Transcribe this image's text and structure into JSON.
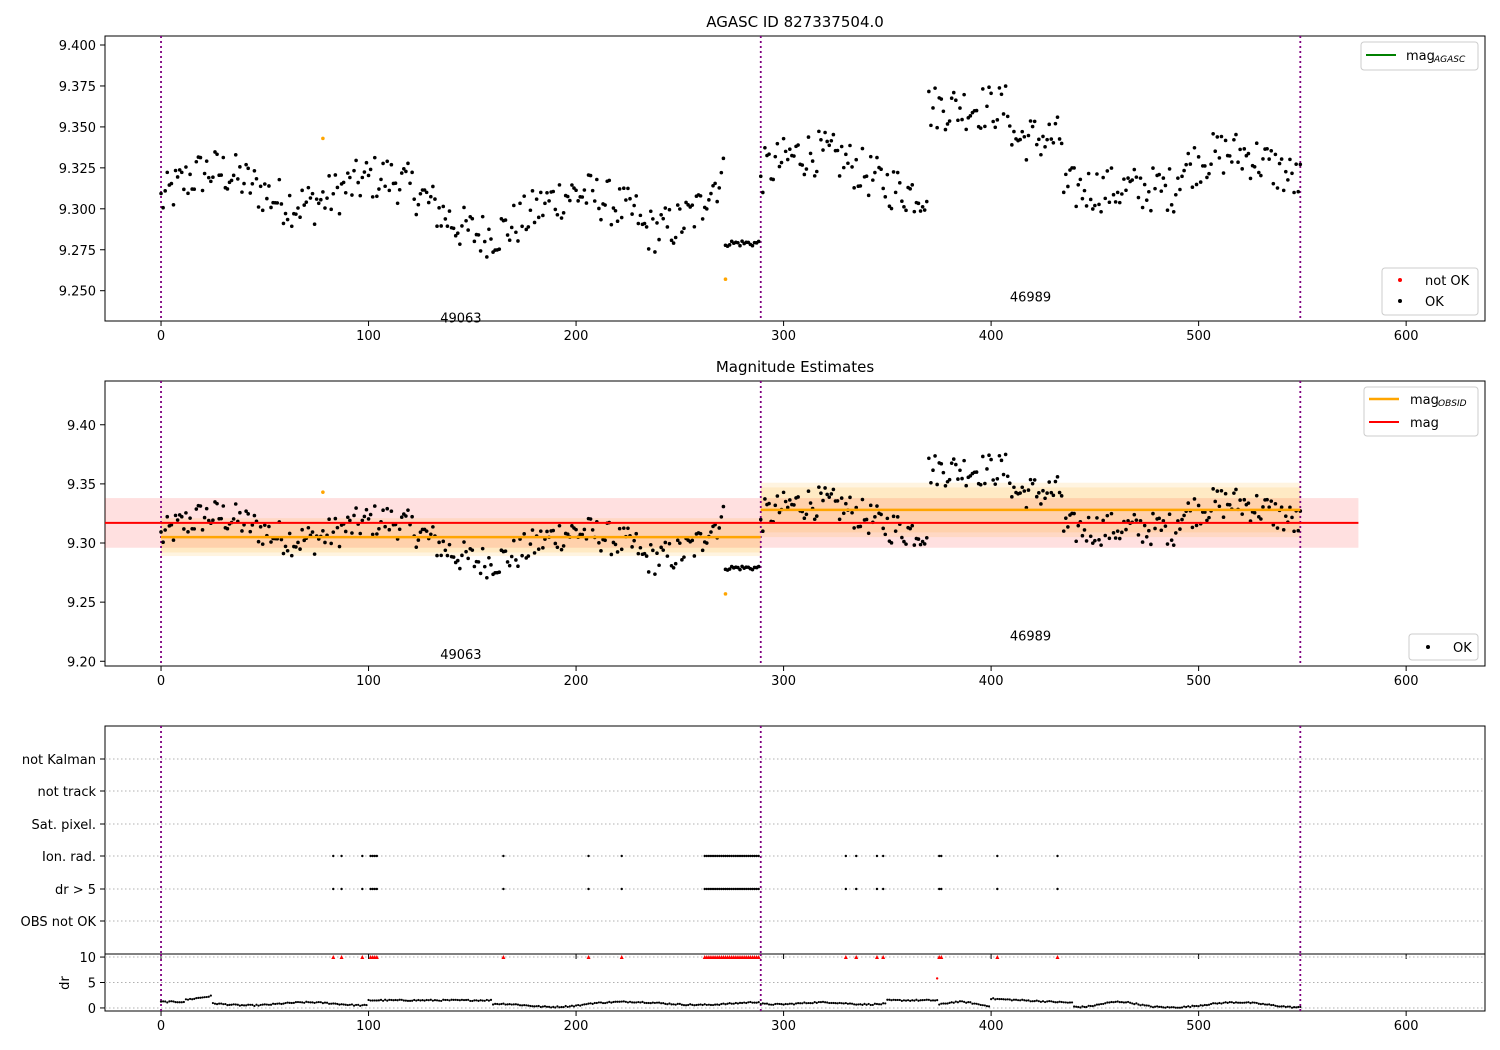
{
  "chart_data": [
    {
      "type": "scatter",
      "title": "AGASC ID 827337504.0",
      "xlim": [
        -27,
        638
      ],
      "ylim": [
        9.2315,
        9.4055
      ],
      "xticks": [
        0,
        100,
        200,
        300,
        400,
        500,
        600
      ],
      "yticks": [
        9.25,
        9.275,
        9.3,
        9.325,
        9.35,
        9.375,
        9.4
      ],
      "ytick_labels": [
        "9.250",
        "9.275",
        "9.300",
        "9.325",
        "9.350",
        "9.375",
        "9.400"
      ],
      "obsid_boundaries": [
        0,
        289,
        549
      ],
      "obsid_labels": [
        {
          "text": "49063",
          "x": 144.5,
          "y": 9.2335
        },
        {
          "text": "46989",
          "x": 419,
          "y": 9.2465
        }
      ],
      "legend_upper": {
        "position": "upper right",
        "entries": [
          {
            "label": "mag",
            "subscript": "AGASC",
            "color": "#008000"
          }
        ]
      },
      "legend_lower": {
        "position": "lower right",
        "entries": [
          {
            "label": "not OK",
            "color": "#ff0000"
          },
          {
            "label": "OK",
            "color": "#000000"
          }
        ]
      },
      "flagged_points": [
        {
          "x": 78,
          "y": 9.343,
          "color": "#ffa500"
        },
        {
          "x": 272,
          "y": 9.257,
          "color": "#ffa500"
        }
      ]
    },
    {
      "type": "scatter",
      "title": "Magnitude Estimates",
      "xlim": [
        -27,
        638
      ],
      "ylim": [
        9.196,
        9.437
      ],
      "xticks": [
        0,
        100,
        200,
        300,
        400,
        500,
        600
      ],
      "yticks": [
        9.2,
        9.25,
        9.3,
        9.35,
        9.4
      ],
      "ytick_labels": [
        "9.20",
        "9.25",
        "9.30",
        "9.35",
        "9.40"
      ],
      "obsid_boundaries": [
        0,
        289,
        549
      ],
      "obsid_labels": [
        {
          "text": "49063",
          "x": 144.5,
          "y": 9.206
        },
        {
          "text": "46989",
          "x": 419,
          "y": 9.222
        }
      ],
      "mag": {
        "value": 9.317,
        "band": [
          9.296,
          9.338
        ],
        "x_range": [
          -27,
          577
        ],
        "color": "#ff0000"
      },
      "mag_obsid": [
        {
          "x_range": [
            0,
            289
          ],
          "value": 9.305,
          "band": [
            9.292,
            9.318
          ],
          "outer_band": [
            9.289,
            9.321
          ]
        },
        {
          "x_range": [
            289,
            549
          ],
          "value": 9.328,
          "band": [
            9.309,
            9.347
          ],
          "outer_band": [
            9.305,
            9.351
          ]
        }
      ],
      "legend_upper": {
        "position": "upper right",
        "entries": [
          {
            "label": "mag",
            "subscript": "OBSID",
            "color": "#ffa500"
          },
          {
            "label": "mag",
            "color": "#ff0000"
          }
        ]
      },
      "legend_lower": {
        "position": "lower right",
        "entries": [
          {
            "label": "OK",
            "color": "#000000"
          }
        ]
      },
      "flagged_points": [
        {
          "x": 78,
          "y": 9.343,
          "color": "#ffa500"
        },
        {
          "x": 272,
          "y": 9.257,
          "color": "#ffa500"
        }
      ]
    },
    {
      "type": "scatter",
      "title": "",
      "flag_rows": [
        "not Kalman",
        "not track",
        "Sat. pixel.",
        "Ion. rad.",
        "dr > 5",
        "OBS not OK"
      ],
      "flag_points_ion_rad": [
        83,
        87,
        97,
        101,
        102,
        103,
        104,
        165,
        206,
        222,
        262,
        263,
        264,
        265,
        266,
        267,
        268,
        269,
        270,
        271,
        272,
        273,
        274,
        275,
        276,
        277,
        278,
        279,
        280,
        281,
        282,
        283,
        284,
        285,
        286,
        287,
        288,
        330,
        335,
        345,
        348,
        375,
        376,
        403,
        432
      ],
      "flag_points_dr_gt_5": [
        83,
        87,
        97,
        101,
        102,
        103,
        104,
        165,
        206,
        222,
        262,
        263,
        264,
        265,
        266,
        267,
        268,
        269,
        270,
        271,
        272,
        273,
        274,
        275,
        276,
        277,
        278,
        279,
        280,
        281,
        282,
        283,
        284,
        285,
        286,
        287,
        288,
        330,
        335,
        345,
        348,
        375,
        376,
        403,
        432
      ],
      "xlim": [
        -27,
        638
      ],
      "xticks": [
        0,
        100,
        200,
        300,
        400,
        500,
        600
      ],
      "obsid_boundaries": [
        0,
        289,
        549
      ]
    },
    {
      "type": "scatter",
      "ylabel": "dr",
      "xlim": [
        -27,
        638
      ],
      "ylim": [
        -0.6,
        10.6
      ],
      "yticks": [
        0,
        5,
        10
      ],
      "xticks": [
        0,
        100,
        200,
        300,
        400,
        500,
        600
      ],
      "obsid_boundaries": [
        0,
        289,
        549
      ],
      "clipped_marker_value": 10,
      "clipped_x": [
        83,
        87,
        97,
        101,
        102,
        103,
        104,
        165,
        206,
        222,
        262,
        263,
        264,
        265,
        266,
        267,
        268,
        269,
        270,
        271,
        272,
        273,
        274,
        275,
        276,
        277,
        278,
        279,
        280,
        281,
        282,
        283,
        284,
        285,
        286,
        287,
        288,
        330,
        335,
        345,
        348,
        375,
        376,
        403,
        432
      ],
      "extra_points": [
        {
          "x": 374,
          "y": 5.8,
          "color": "#ff0000"
        }
      ]
    }
  ]
}
